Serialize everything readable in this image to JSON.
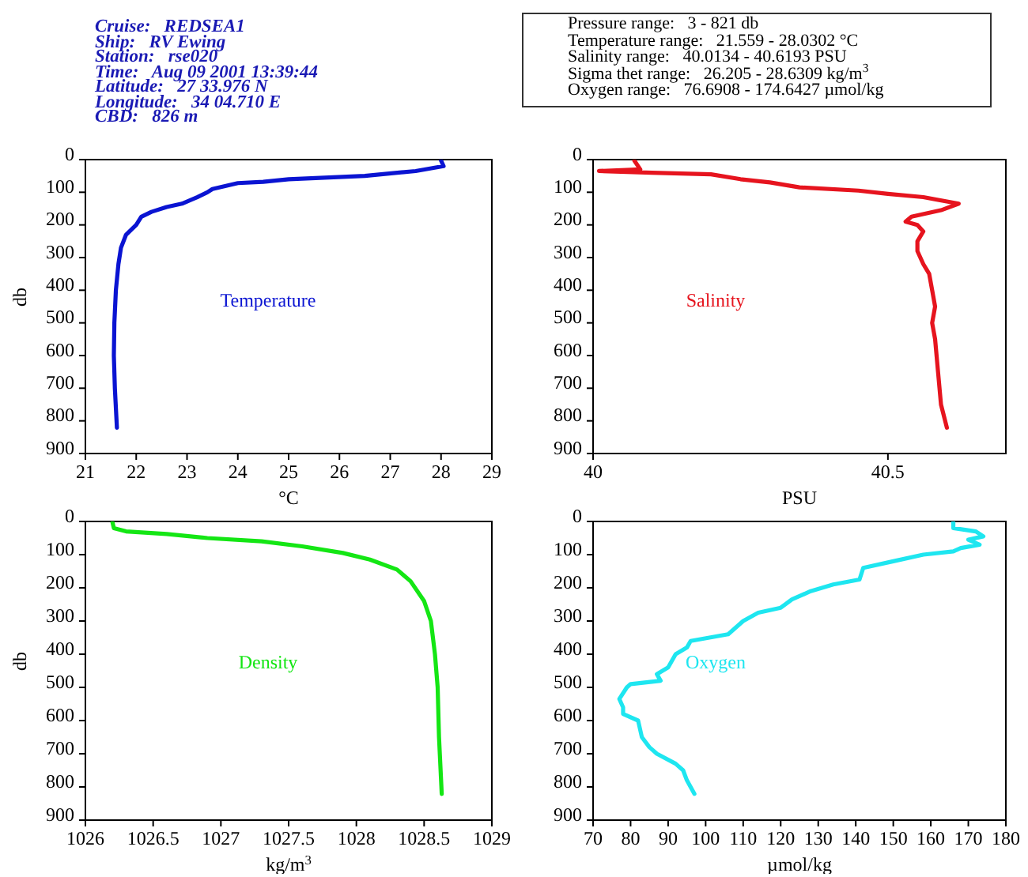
{
  "chart_data": [
    {
      "type": "line",
      "xlabel": "°C",
      "ylabel": "db",
      "xlim": [
        21,
        29
      ],
      "xticks": [
        21,
        22,
        23,
        24,
        25,
        26,
        27,
        28,
        29
      ],
      "ylim": [
        900,
        0
      ],
      "yticks": [
        0,
        100,
        200,
        300,
        400,
        500,
        600,
        700,
        800,
        900
      ],
      "annotations": [
        "Cruise:   REDSEA1",
        "Ship:   RV Ewing",
        "Station:   rse020",
        "Time:   Aug 09 2001 13:39:44",
        "Latitude:   27 33.976 N",
        "Longitude:   34 04.710 E",
        "CBD:   826 m"
      ],
      "series": [
        {
          "name": "Temperature",
          "color": "#0a14d2",
          "x": [
            28.0,
            28.05,
            27.5,
            26.5,
            25,
            24.5,
            24,
            23.5,
            23.4,
            23.2,
            22.9,
            22.6,
            22.3,
            22.1,
            22.0,
            21.8,
            21.7,
            21.65,
            21.6,
            21.57,
            21.56,
            21.58,
            21.62
          ],
          "values": [
            3,
            20,
            35,
            50,
            60,
            68,
            72,
            90,
            100,
            115,
            135,
            145,
            160,
            175,
            200,
            230,
            270,
            320,
            400,
            500,
            600,
            700,
            821
          ]
        }
      ]
    },
    {
      "type": "line",
      "xlabel": "PSU",
      "xlim": [
        40,
        40.7
      ],
      "xticks": [
        40,
        40.5
      ],
      "ylim": [
        900,
        0
      ],
      "yticks": [
        0,
        100,
        200,
        300,
        400,
        500,
        600,
        700,
        800,
        900
      ],
      "annotations": [
        "Pressure range:   3 - 821 db",
        "Temperature range:   21.559 - 28.0302 °C",
        "Salinity range:   40.0134 - 40.6193 PSU",
        "Sigma thet range:   26.205 - 28.6309 kg/m$^{3}$",
        "Oxygen range:   76.6908 - 174.6427 µmol/kg"
      ],
      "series": [
        {
          "name": "Salinity",
          "color": "#e6141e",
          "x": [
            40.07,
            40.08,
            40.01,
            40.1,
            40.2,
            40.25,
            40.3,
            40.35,
            40.45,
            40.5,
            40.56,
            40.62,
            40.59,
            40.54,
            40.53,
            40.55,
            40.56,
            40.55,
            40.55,
            40.56,
            40.57,
            40.575,
            40.58,
            40.575,
            40.58,
            40.585,
            40.59,
            40.6
          ],
          "values": [
            3,
            30,
            35,
            40,
            45,
            60,
            70,
            85,
            95,
            105,
            115,
            135,
            155,
            175,
            190,
            200,
            220,
            250,
            280,
            320,
            350,
            400,
            450,
            500,
            550,
            650,
            750,
            821
          ]
        }
      ]
    },
    {
      "type": "line",
      "xlabel": "kg/m$^{3}$",
      "ylabel": "db",
      "xlim": [
        1026,
        1029
      ],
      "xticks": [
        1026,
        1026.5,
        1027,
        1027.5,
        1028,
        1028.5,
        1029
      ],
      "ylim": [
        900,
        0
      ],
      "yticks": [
        0,
        100,
        200,
        300,
        400,
        500,
        600,
        700,
        800,
        900
      ],
      "series": [
        {
          "name": "Density",
          "color": "#14e614",
          "x": [
            1026.2,
            1026.21,
            1026.3,
            1026.6,
            1026.9,
            1027.3,
            1027.6,
            1027.9,
            1028.1,
            1028.3,
            1028.4,
            1028.5,
            1028.55,
            1028.58,
            1028.6,
            1028.61,
            1028.63
          ],
          "values": [
            3,
            20,
            30,
            38,
            50,
            60,
            75,
            95,
            115,
            145,
            180,
            240,
            300,
            400,
            500,
            650,
            821
          ]
        }
      ]
    },
    {
      "type": "line",
      "xlabel": "µmol/kg",
      "xlim": [
        70,
        180
      ],
      "xticks": [
        70,
        80,
        90,
        100,
        110,
        120,
        130,
        140,
        150,
        160,
        170,
        180
      ],
      "ylim": [
        900,
        0
      ],
      "yticks": [
        0,
        100,
        200,
        300,
        400,
        500,
        600,
        700,
        800,
        900
      ],
      "series": [
        {
          "name": "Oxygen",
          "color": "#1ee6f0",
          "x": [
            166,
            166,
            172,
            174,
            170,
            173,
            168,
            166,
            158,
            150,
            142,
            141,
            134,
            128,
            123,
            120,
            114,
            110,
            106,
            96,
            95,
            92,
            90,
            87,
            88,
            80,
            79,
            77,
            78,
            78,
            82,
            83,
            85,
            87,
            92,
            94,
            95,
            97
          ],
          "values": [
            3,
            20,
            30,
            45,
            55,
            70,
            80,
            90,
            100,
            120,
            140,
            175,
            190,
            210,
            235,
            260,
            275,
            300,
            340,
            360,
            380,
            400,
            440,
            460,
            480,
            490,
            500,
            535,
            560,
            580,
            600,
            650,
            680,
            700,
            730,
            750,
            780,
            821
          ]
        }
      ]
    }
  ]
}
